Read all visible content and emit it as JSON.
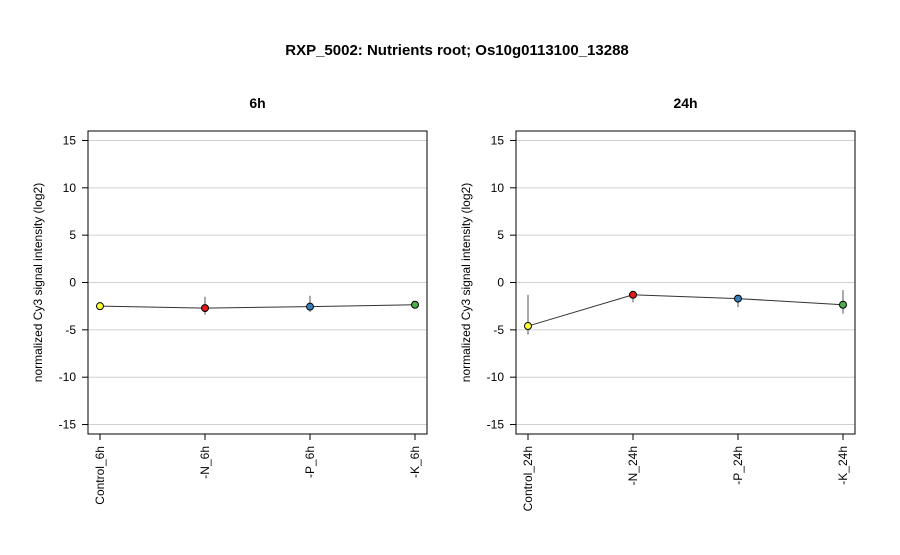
{
  "title": "RXP_5002: Nutrients root; Os10g0113100_13288",
  "chart_data": [
    {
      "type": "line",
      "title": "6h",
      "ylabel": "normalized Cy3 signal intensity (log2)",
      "xlabel": "",
      "ylim": [
        -16,
        16
      ],
      "yticks": [
        -15,
        -10,
        -5,
        0,
        5,
        10,
        15
      ],
      "grid": true,
      "categories": [
        "Control_6h",
        "-N_6h",
        "-P_6h",
        "-K_6h"
      ],
      "values": [
        -2.5,
        -2.7,
        -2.55,
        -2.35
      ],
      "error_low": [
        -2.5,
        -3.4,
        -3.1,
        -2.35
      ],
      "error_high": [
        -2.5,
        -1.5,
        -1.4,
        -2.35
      ],
      "point_colors": [
        "#ffff33",
        "#e41a1c",
        "#377eb8",
        "#4daf4a"
      ]
    },
    {
      "type": "line",
      "title": "24h",
      "ylabel": "normalized Cy3 signal intensity (log2)",
      "xlabel": "",
      "ylim": [
        -16,
        16
      ],
      "yticks": [
        -15,
        -10,
        -5,
        0,
        5,
        10,
        15
      ],
      "grid": true,
      "categories": [
        "Control_24h",
        "-N_24h",
        "-P_24h",
        "-K_24h"
      ],
      "values": [
        -4.6,
        -1.3,
        -1.7,
        -2.35
      ],
      "error_low": [
        -5.5,
        -2.1,
        -2.6,
        -3.3
      ],
      "error_high": [
        -1.3,
        -1.3,
        -1.7,
        -0.8
      ],
      "point_colors": [
        "#ffff33",
        "#e41a1c",
        "#377eb8",
        "#4daf4a"
      ]
    }
  ]
}
